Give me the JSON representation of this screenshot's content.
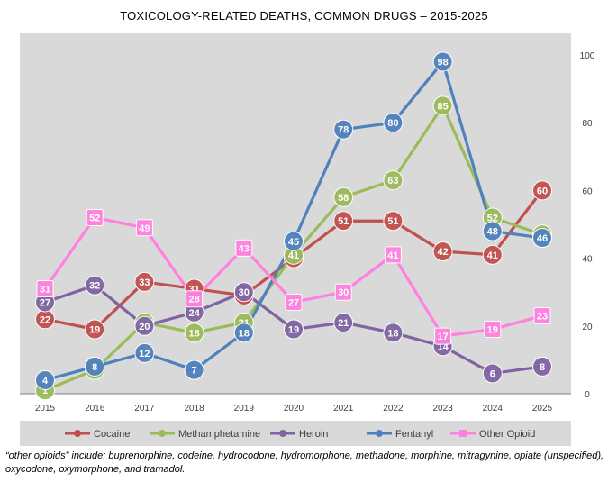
{
  "title": "TOXICOLOGY-RELATED DEATHS, COMMON DRUGS – 2015-2025",
  "footnote": "“other opioids” include: buprenorphine, codeine, hydrocodone, hydromorphone, methadone, morphine, mitragynine, opiate (unspecified), oxycodone, oxymorphone, and tramadol.",
  "chart_data": {
    "type": "line",
    "title": "TOXICOLOGY-RELATED DEATHS, COMMON DRUGS – 2015-2025",
    "x": [
      "2015",
      "2016",
      "2017",
      "2018",
      "2019",
      "2020",
      "2021",
      "2022",
      "2023",
      "2024",
      "2025"
    ],
    "ylim": [
      0,
      100
    ],
    "yticks": [
      0,
      20,
      40,
      60,
      80,
      100
    ],
    "y_axis_side": "right",
    "grid": false,
    "legend_position": "bottom",
    "background": "#d9d9d9",
    "series": [
      {
        "name": "Cocaine",
        "color": "#c0504d",
        "marker": "circle",
        "values": [
          22,
          19,
          33,
          31,
          29,
          40,
          51,
          51,
          42,
          41,
          60
        ]
      },
      {
        "name": "Methamphetamine",
        "color": "#9bbb59",
        "marker": "circle",
        "values": [
          1,
          7,
          21,
          18,
          21,
          41,
          58,
          63,
          85,
          52,
          47
        ]
      },
      {
        "name": "Heroin",
        "color": "#8064a2",
        "marker": "circle",
        "values": [
          27,
          32,
          20,
          24,
          30,
          19,
          21,
          18,
          14,
          6,
          8
        ]
      },
      {
        "name": "Fentanyl",
        "color": "#4f81bd",
        "marker": "circle",
        "values": [
          4,
          8,
          12,
          7,
          18,
          45,
          78,
          80,
          98,
          48,
          46
        ]
      },
      {
        "name": "Other Opioid",
        "color": "#ff80e0",
        "marker": "square",
        "values": [
          31,
          52,
          49,
          28,
          43,
          27,
          30,
          41,
          17,
          19,
          23
        ]
      }
    ]
  }
}
